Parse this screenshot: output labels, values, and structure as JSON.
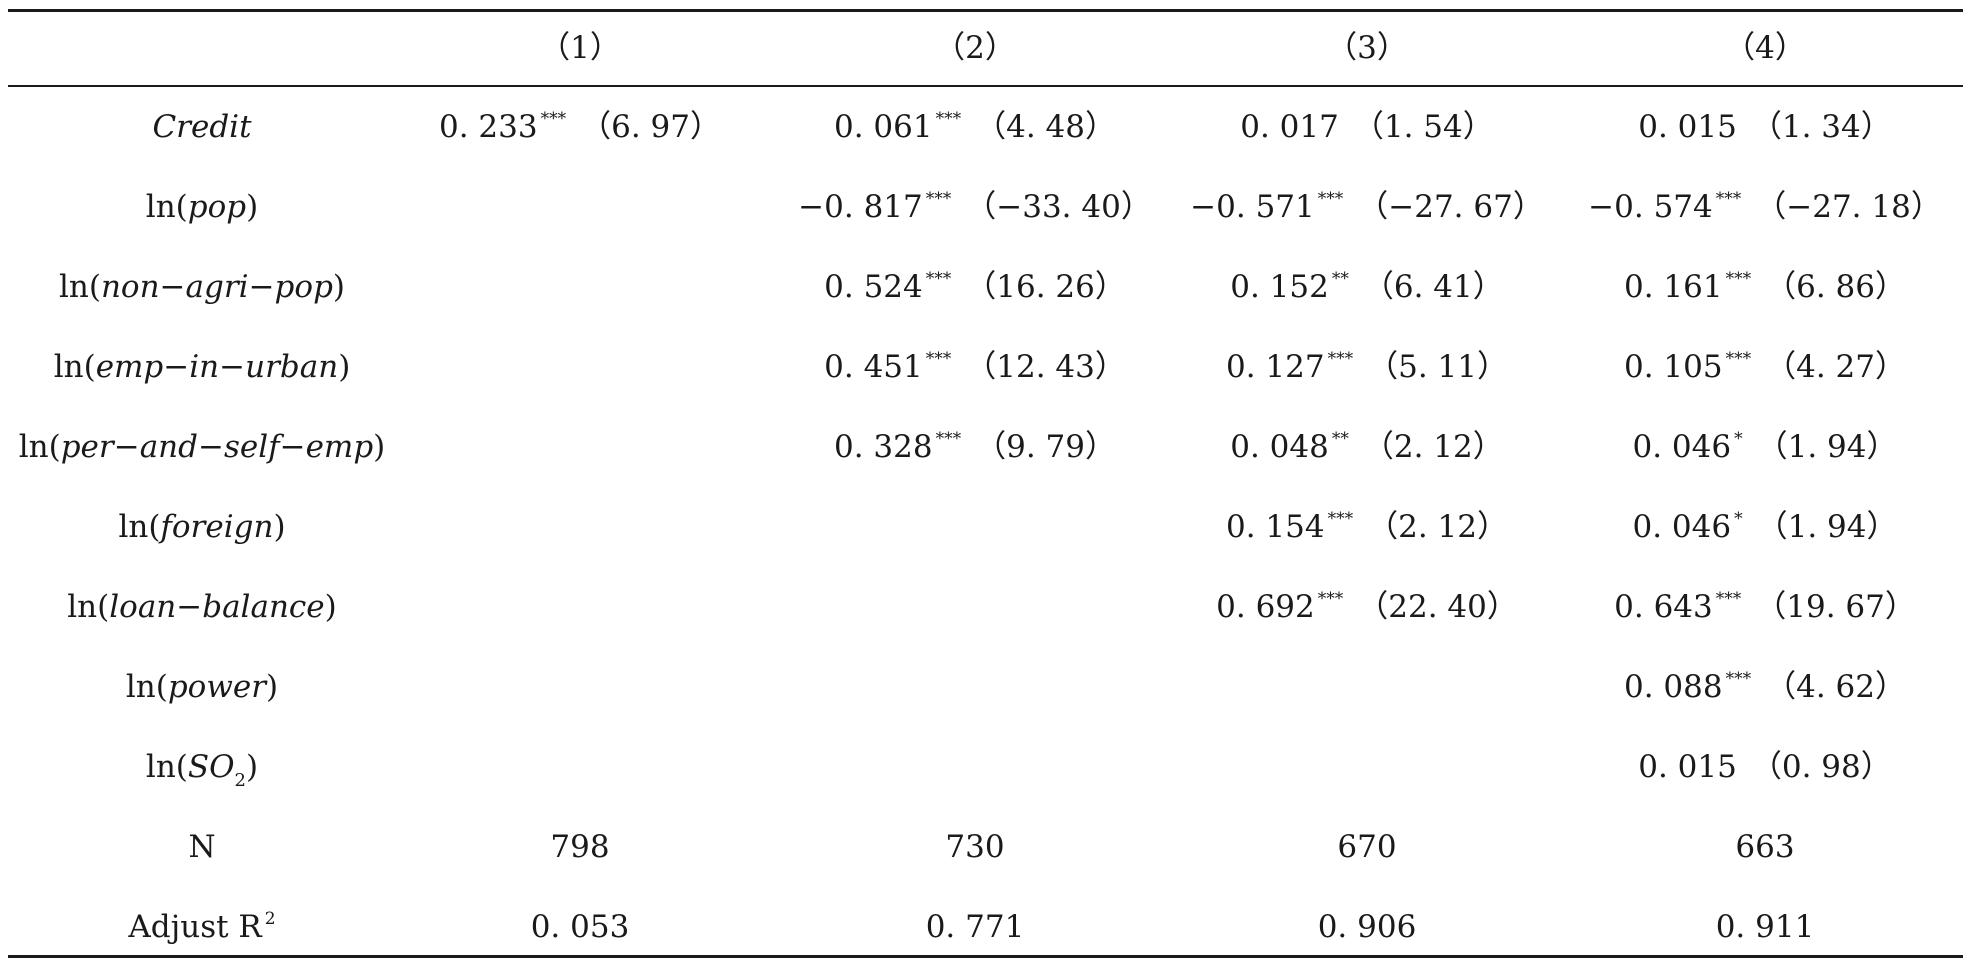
{
  "table": {
    "header": [
      "（1）",
      "（2）",
      "（3）",
      "（4）"
    ],
    "rows": [
      {
        "label": "Credit",
        "cells": [
          {
            "coef": "0. 233",
            "stars": "***",
            "se": "（6. 97）"
          },
          {
            "coef": "0. 061",
            "stars": "***",
            "se": "（4. 48）"
          },
          {
            "coef": "0. 017",
            "stars": "",
            "se": "（1. 54）"
          },
          {
            "coef": "0. 015",
            "stars": "",
            "se": "（1. 34）"
          }
        ]
      },
      {
        "label_prefix": "ln(",
        "label_var": "pop",
        "label_suffix": ")",
        "cells": [
          null,
          {
            "coef": "−0. 817",
            "stars": "***",
            "se": "（−33. 40）"
          },
          {
            "coef": "−0. 571",
            "stars": "***",
            "se": "（−27. 67）"
          },
          {
            "coef": "−0. 574",
            "stars": "***",
            "se": "（−27. 18）"
          }
        ]
      },
      {
        "label_prefix": "ln(",
        "label_var": "non−agri−pop",
        "label_suffix": ")",
        "cells": [
          null,
          {
            "coef": "0. 524",
            "stars": "***",
            "se": "（16. 26）"
          },
          {
            "coef": "0. 152",
            "stars": "**",
            "se": "（6. 41）"
          },
          {
            "coef": "0. 161",
            "stars": "***",
            "se": "（6. 86）"
          }
        ]
      },
      {
        "label_prefix": "ln(",
        "label_var": "emp−in−urban",
        "label_suffix": ")",
        "cells": [
          null,
          {
            "coef": "0. 451",
            "stars": "***",
            "se": "（12. 43）"
          },
          {
            "coef": "0. 127",
            "stars": "***",
            "se": "（5. 11）"
          },
          {
            "coef": "0. 105",
            "stars": "***",
            "se": "（4. 27）"
          }
        ]
      },
      {
        "label_prefix": "ln(",
        "label_var": "per−and−self−emp",
        "label_suffix": ")",
        "cells": [
          null,
          {
            "coef": "0. 328",
            "stars": "***",
            "se": "（9. 79）"
          },
          {
            "coef": "0. 048",
            "stars": "**",
            "se": "（2. 12）"
          },
          {
            "coef": "0. 046",
            "stars": "*",
            "se": "（1. 94）"
          }
        ]
      },
      {
        "label_prefix": "ln(",
        "label_var": "foreign",
        "label_suffix": ")",
        "cells": [
          null,
          null,
          {
            "coef": "0. 154",
            "stars": "***",
            "se": "（2. 12）"
          },
          {
            "coef": "0. 046",
            "stars": "*",
            "se": "（1. 94）"
          }
        ]
      },
      {
        "label_prefix": "ln(",
        "label_var": "loan−balance",
        "label_suffix": ")",
        "cells": [
          null,
          null,
          {
            "coef": "0. 692",
            "stars": "***",
            "se": "（22. 40）"
          },
          {
            "coef": "0. 643",
            "stars": "***",
            "se": "（19. 67）"
          }
        ]
      },
      {
        "label_prefix": "ln(",
        "label_var": "power",
        "label_suffix": ")",
        "cells": [
          null,
          null,
          null,
          {
            "coef": "0. 088",
            "stars": "***",
            "se": "（4. 62）"
          }
        ]
      },
      {
        "label_prefix": "ln(",
        "label_var": "SO",
        "label_sub": "2",
        "label_suffix": ")",
        "cells": [
          null,
          null,
          null,
          {
            "coef": "0. 015",
            "stars": "",
            "se": "（0. 98）"
          }
        ]
      }
    ],
    "n_row": {
      "label": "N",
      "values": [
        "798",
        "730",
        "670",
        "663"
      ]
    },
    "r2_row": {
      "label": "Adjust R",
      "label_sup": "2",
      "values": [
        "0. 053",
        "0. 771",
        "0. 906",
        "0. 911"
      ]
    }
  }
}
